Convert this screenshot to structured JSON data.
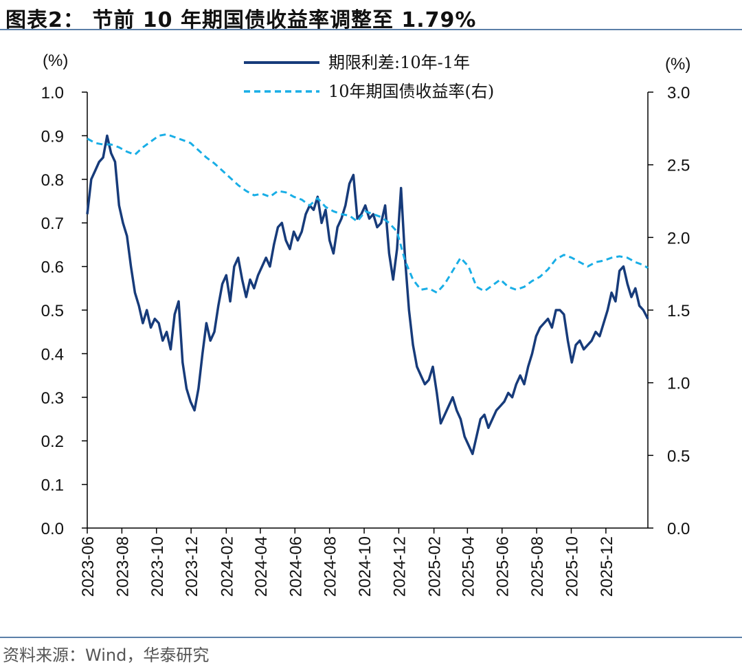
{
  "header": {
    "title": "图表2：  节前 10 年期国债收益率调整至 1.79%"
  },
  "footer": {
    "source": "资料来源：Wind，华泰研究"
  },
  "colors": {
    "spread": "#173b7a",
    "yield": "#19aee6",
    "rule": "#5b7fa8"
  },
  "chart_data": {
    "type": "line",
    "left_axis": {
      "unit": "(%)",
      "range": [
        0.0,
        1.0
      ],
      "ticks": [
        "0.0",
        "0.1",
        "0.2",
        "0.3",
        "0.4",
        "0.5",
        "0.6",
        "0.7",
        "0.8",
        "0.9",
        "1.0"
      ]
    },
    "right_axis": {
      "unit": "(%)",
      "range": [
        0.0,
        3.0
      ],
      "ticks": [
        "0.0",
        "0.5",
        "1.0",
        "1.5",
        "2.0",
        "2.5",
        "3.0"
      ]
    },
    "x_axis": {
      "range": [
        "2023-06-01",
        "2026-02-13"
      ],
      "ticks": [
        "2023-06",
        "2023-08",
        "2023-10",
        "2023-12",
        "2024-02",
        "2024-04",
        "2024-06",
        "2024-08",
        "2024-10",
        "2024-12",
        "2025-02",
        "2025-04",
        "2025-06",
        "2025-08",
        "2025-10",
        "2025-12"
      ]
    },
    "grid": false,
    "legend_placement": "top-center",
    "series": [
      {
        "name": "期限利差:10年-1年",
        "axis": "left",
        "style": "solid",
        "points": [
          [
            "2023-06-01",
            0.72
          ],
          [
            "2023-06-08",
            0.8
          ],
          [
            "2023-06-15",
            0.82
          ],
          [
            "2023-06-22",
            0.84
          ],
          [
            "2023-06-29",
            0.85
          ],
          [
            "2023-07-06",
            0.9
          ],
          [
            "2023-07-13",
            0.86
          ],
          [
            "2023-07-20",
            0.84
          ],
          [
            "2023-07-27",
            0.74
          ],
          [
            "2023-08-03",
            0.7
          ],
          [
            "2023-08-10",
            0.67
          ],
          [
            "2023-08-17",
            0.6
          ],
          [
            "2023-08-24",
            0.54
          ],
          [
            "2023-08-31",
            0.51
          ],
          [
            "2023-09-07",
            0.47
          ],
          [
            "2023-09-14",
            0.5
          ],
          [
            "2023-09-21",
            0.46
          ],
          [
            "2023-09-28",
            0.48
          ],
          [
            "2023-10-05",
            0.47
          ],
          [
            "2023-10-12",
            0.43
          ],
          [
            "2023-10-19",
            0.45
          ],
          [
            "2023-10-26",
            0.41
          ],
          [
            "2023-11-02",
            0.49
          ],
          [
            "2023-11-09",
            0.52
          ],
          [
            "2023-11-16",
            0.38
          ],
          [
            "2023-11-23",
            0.32
          ],
          [
            "2023-11-30",
            0.29
          ],
          [
            "2023-12-07",
            0.27
          ],
          [
            "2023-12-14",
            0.32
          ],
          [
            "2023-12-21",
            0.4
          ],
          [
            "2023-12-28",
            0.47
          ],
          [
            "2024-01-04",
            0.43
          ],
          [
            "2024-01-11",
            0.45
          ],
          [
            "2024-01-18",
            0.51
          ],
          [
            "2024-01-25",
            0.56
          ],
          [
            "2024-02-01",
            0.58
          ],
          [
            "2024-02-08",
            0.52
          ],
          [
            "2024-02-15",
            0.6
          ],
          [
            "2024-02-22",
            0.62
          ],
          [
            "2024-02-29",
            0.57
          ],
          [
            "2024-03-07",
            0.53
          ],
          [
            "2024-03-14",
            0.57
          ],
          [
            "2024-03-21",
            0.55
          ],
          [
            "2024-03-28",
            0.58
          ],
          [
            "2024-04-04",
            0.6
          ],
          [
            "2024-04-11",
            0.62
          ],
          [
            "2024-04-18",
            0.6
          ],
          [
            "2024-04-25",
            0.65
          ],
          [
            "2024-05-02",
            0.69
          ],
          [
            "2024-05-09",
            0.7
          ],
          [
            "2024-05-16",
            0.66
          ],
          [
            "2024-05-23",
            0.64
          ],
          [
            "2024-05-30",
            0.68
          ],
          [
            "2024-06-06",
            0.66
          ],
          [
            "2024-06-13",
            0.68
          ],
          [
            "2024-06-20",
            0.72
          ],
          [
            "2024-06-27",
            0.74
          ],
          [
            "2024-07-04",
            0.73
          ],
          [
            "2024-07-11",
            0.76
          ],
          [
            "2024-07-18",
            0.7
          ],
          [
            "2024-07-25",
            0.73
          ],
          [
            "2024-08-01",
            0.66
          ],
          [
            "2024-08-08",
            0.63
          ],
          [
            "2024-08-15",
            0.69
          ],
          [
            "2024-08-22",
            0.71
          ],
          [
            "2024-08-29",
            0.74
          ],
          [
            "2024-09-05",
            0.79
          ],
          [
            "2024-09-12",
            0.81
          ],
          [
            "2024-09-19",
            0.71
          ],
          [
            "2024-09-26",
            0.72
          ],
          [
            "2024-10-03",
            0.74
          ],
          [
            "2024-10-10",
            0.71
          ],
          [
            "2024-10-17",
            0.72
          ],
          [
            "2024-10-24",
            0.69
          ],
          [
            "2024-10-31",
            0.7
          ],
          [
            "2024-11-07",
            0.74
          ],
          [
            "2024-11-14",
            0.63
          ],
          [
            "2024-11-21",
            0.57
          ],
          [
            "2024-11-28",
            0.64
          ],
          [
            "2024-12-05",
            0.78
          ],
          [
            "2024-12-12",
            0.62
          ],
          [
            "2024-12-19",
            0.5
          ],
          [
            "2024-12-26",
            0.42
          ],
          [
            "2025-01-02",
            0.37
          ],
          [
            "2025-01-09",
            0.35
          ],
          [
            "2025-01-16",
            0.33
          ],
          [
            "2025-01-23",
            0.34
          ],
          [
            "2025-01-30",
            0.37
          ],
          [
            "2025-02-06",
            0.31
          ],
          [
            "2025-02-13",
            0.24
          ],
          [
            "2025-02-20",
            0.26
          ],
          [
            "2025-02-27",
            0.28
          ],
          [
            "2025-03-06",
            0.3
          ],
          [
            "2025-03-13",
            0.27
          ],
          [
            "2025-03-20",
            0.25
          ],
          [
            "2025-03-27",
            0.21
          ],
          [
            "2025-04-03",
            0.19
          ],
          [
            "2025-04-10",
            0.17
          ],
          [
            "2025-04-17",
            0.21
          ],
          [
            "2025-04-24",
            0.25
          ],
          [
            "2025-05-01",
            0.26
          ],
          [
            "2025-05-08",
            0.23
          ],
          [
            "2025-05-15",
            0.25
          ],
          [
            "2025-05-22",
            0.27
          ],
          [
            "2025-05-29",
            0.28
          ],
          [
            "2025-06-05",
            0.29
          ],
          [
            "2025-06-12",
            0.31
          ],
          [
            "2025-06-19",
            0.3
          ],
          [
            "2025-06-26",
            0.33
          ],
          [
            "2025-07-03",
            0.35
          ],
          [
            "2025-07-10",
            0.33
          ],
          [
            "2025-07-17",
            0.37
          ],
          [
            "2025-07-24",
            0.4
          ],
          [
            "2025-07-31",
            0.44
          ],
          [
            "2025-08-07",
            0.46
          ],
          [
            "2025-08-14",
            0.47
          ],
          [
            "2025-08-21",
            0.48
          ],
          [
            "2025-08-28",
            0.46
          ],
          [
            "2025-09-04",
            0.5
          ],
          [
            "2025-09-11",
            0.5
          ],
          [
            "2025-09-18",
            0.49
          ],
          [
            "2025-09-25",
            0.43
          ],
          [
            "2025-10-02",
            0.38
          ],
          [
            "2025-10-09",
            0.42
          ],
          [
            "2025-10-16",
            0.43
          ],
          [
            "2025-10-23",
            0.41
          ],
          [
            "2025-10-30",
            0.42
          ],
          [
            "2025-11-06",
            0.43
          ],
          [
            "2025-11-13",
            0.45
          ],
          [
            "2025-11-20",
            0.44
          ],
          [
            "2025-11-27",
            0.47
          ],
          [
            "2025-12-04",
            0.5
          ],
          [
            "2025-12-11",
            0.54
          ],
          [
            "2025-12-18",
            0.52
          ],
          [
            "2025-12-25",
            0.59
          ],
          [
            "2026-01-01",
            0.6
          ],
          [
            "2026-01-08",
            0.56
          ],
          [
            "2026-01-15",
            0.53
          ],
          [
            "2026-01-22",
            0.55
          ],
          [
            "2026-01-29",
            0.51
          ],
          [
            "2026-02-05",
            0.5
          ],
          [
            "2026-02-13",
            0.48
          ]
        ]
      },
      {
        "name": "10年期国债收益率(右)",
        "axis": "right",
        "style": "dashed",
        "points": [
          [
            "2023-06-01",
            2.68
          ],
          [
            "2023-06-15",
            2.65
          ],
          [
            "2023-06-29",
            2.64
          ],
          [
            "2023-07-13",
            2.64
          ],
          [
            "2023-07-27",
            2.62
          ],
          [
            "2023-08-10",
            2.59
          ],
          [
            "2023-08-24",
            2.57
          ],
          [
            "2023-09-07",
            2.62
          ],
          [
            "2023-09-21",
            2.66
          ],
          [
            "2023-10-05",
            2.7
          ],
          [
            "2023-10-19",
            2.71
          ],
          [
            "2023-11-02",
            2.69
          ],
          [
            "2023-11-16",
            2.67
          ],
          [
            "2023-11-30",
            2.65
          ],
          [
            "2023-12-14",
            2.6
          ],
          [
            "2023-12-28",
            2.55
          ],
          [
            "2024-01-11",
            2.51
          ],
          [
            "2024-01-25",
            2.46
          ],
          [
            "2024-02-08",
            2.41
          ],
          [
            "2024-02-22",
            2.36
          ],
          [
            "2024-03-07",
            2.32
          ],
          [
            "2024-03-21",
            2.29
          ],
          [
            "2024-04-04",
            2.3
          ],
          [
            "2024-04-18",
            2.28
          ],
          [
            "2024-05-02",
            2.32
          ],
          [
            "2024-05-16",
            2.31
          ],
          [
            "2024-05-30",
            2.28
          ],
          [
            "2024-06-13",
            2.26
          ],
          [
            "2024-06-27",
            2.22
          ],
          [
            "2024-07-11",
            2.27
          ],
          [
            "2024-07-25",
            2.21
          ],
          [
            "2024-08-08",
            2.18
          ],
          [
            "2024-08-22",
            2.16
          ],
          [
            "2024-09-05",
            2.15
          ],
          [
            "2024-09-19",
            2.11
          ],
          [
            "2024-10-03",
            2.18
          ],
          [
            "2024-10-17",
            2.16
          ],
          [
            "2024-10-31",
            2.14
          ],
          [
            "2024-11-14",
            2.1
          ],
          [
            "2024-11-28",
            2.04
          ],
          [
            "2024-12-12",
            1.84
          ],
          [
            "2024-12-26",
            1.71
          ],
          [
            "2025-01-09",
            1.64
          ],
          [
            "2025-01-23",
            1.65
          ],
          [
            "2025-02-06",
            1.62
          ],
          [
            "2025-02-20",
            1.68
          ],
          [
            "2025-03-06",
            1.77
          ],
          [
            "2025-03-20",
            1.86
          ],
          [
            "2025-04-03",
            1.8
          ],
          [
            "2025-04-17",
            1.66
          ],
          [
            "2025-05-01",
            1.63
          ],
          [
            "2025-05-15",
            1.67
          ],
          [
            "2025-05-29",
            1.71
          ],
          [
            "2025-06-12",
            1.66
          ],
          [
            "2025-06-26",
            1.64
          ],
          [
            "2025-07-10",
            1.66
          ],
          [
            "2025-07-24",
            1.7
          ],
          [
            "2025-08-07",
            1.73
          ],
          [
            "2025-08-21",
            1.78
          ],
          [
            "2025-09-04",
            1.85
          ],
          [
            "2025-09-18",
            1.88
          ],
          [
            "2025-10-02",
            1.86
          ],
          [
            "2025-10-16",
            1.83
          ],
          [
            "2025-10-30",
            1.8
          ],
          [
            "2025-11-13",
            1.83
          ],
          [
            "2025-11-27",
            1.84
          ],
          [
            "2025-12-11",
            1.86
          ],
          [
            "2025-12-25",
            1.87
          ],
          [
            "2026-01-08",
            1.86
          ],
          [
            "2026-01-22",
            1.83
          ],
          [
            "2026-02-05",
            1.81
          ],
          [
            "2026-02-13",
            1.79
          ]
        ]
      }
    ]
  }
}
